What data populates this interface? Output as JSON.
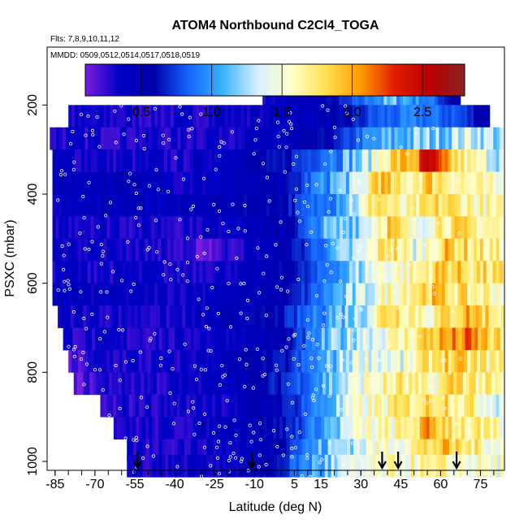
{
  "chart_data": {
    "type": "heatmap",
    "title": "ATOM4 Northbound C2Cl4_TOGA",
    "flights_label": "Flts: 7,8,9,10,11,12",
    "dates_label": "MMDD: 0509,0512,0514,0517,0518,0519",
    "xlabel": "Latitude (deg N)",
    "ylabel": "PSXC (mbar)",
    "xlim": [
      -88,
      84
    ],
    "ylim": [
      1020,
      70
    ],
    "x_ticks": [
      -85,
      -70,
      -55,
      -40,
      -25,
      -10,
      5,
      15,
      30,
      45,
      60,
      75
    ],
    "x_tick_labels": [
      "-85",
      "-70",
      "-55",
      "-40",
      "-25",
      "-10",
      "5",
      "15",
      "30",
      "45",
      "60",
      "75"
    ],
    "y_ticks": [
      200,
      400,
      600,
      800,
      1000
    ],
    "y_tick_labels": [
      "200",
      "400",
      "600",
      "800",
      "1000"
    ],
    "colorbar": {
      "range": [
        0.1,
        2.8
      ],
      "ticks": [
        0.5,
        1.0,
        1.5,
        2.0,
        2.5
      ],
      "tick_labels": [
        "0.5",
        "1.0",
        "1.5",
        "2.0",
        "2.5"
      ],
      "colors": [
        "#7a1de0",
        "#0000c8",
        "#0000aa",
        "#1565ff",
        "#3cb4ff",
        "#d8f0ff",
        "#ffffc8",
        "#ffe050",
        "#ff9a00",
        "#e21a00",
        "#b80000",
        "#8b2323"
      ]
    },
    "arrow_latitudes": [
      -54,
      -11,
      38,
      44,
      66
    ],
    "bands": [
      {
        "p": 175,
        "x0": -7,
        "x1": 67,
        "values": [
          [
            -7,
            0.35
          ],
          [
            10,
            0.4
          ],
          [
            25,
            0.7
          ],
          [
            35,
            1.0
          ],
          [
            45,
            1.1
          ],
          [
            55,
            0.9
          ],
          [
            67,
            0.5
          ]
        ]
      },
      {
        "p": 225,
        "x0": -80,
        "x1": 78,
        "values": [
          [
            -80,
            0.3
          ],
          [
            -40,
            0.3
          ],
          [
            -20,
            0.35
          ],
          [
            0,
            0.4
          ],
          [
            20,
            0.5
          ],
          [
            35,
            0.8
          ],
          [
            50,
            0.9
          ],
          [
            65,
            0.8
          ],
          [
            78,
            0.5
          ]
        ]
      },
      {
        "p": 275,
        "x0": -87,
        "x1": 83,
        "values": [
          [
            -87,
            0.3
          ],
          [
            -40,
            0.3
          ],
          [
            0,
            0.4
          ],
          [
            20,
            0.6
          ],
          [
            30,
            0.9
          ],
          [
            45,
            1.1
          ],
          [
            60,
            1.2
          ],
          [
            70,
            1.4
          ],
          [
            83,
            1.2
          ]
        ]
      },
      {
        "p": 325,
        "x0": -86,
        "x1": 83,
        "values": [
          [
            -86,
            0.35
          ],
          [
            -40,
            0.3
          ],
          [
            0,
            0.6
          ],
          [
            15,
            0.9
          ],
          [
            30,
            1.2
          ],
          [
            40,
            1.8
          ],
          [
            50,
            2.0
          ],
          [
            55,
            2.5
          ],
          [
            60,
            2.0
          ],
          [
            70,
            1.6
          ],
          [
            83,
            1.3
          ]
        ]
      },
      {
        "p": 375,
        "x0": -86,
        "x1": 83,
        "values": [
          [
            -86,
            0.4
          ],
          [
            -55,
            0.5
          ],
          [
            -40,
            0.35
          ],
          [
            0,
            0.5
          ],
          [
            15,
            1.0
          ],
          [
            30,
            1.3
          ],
          [
            35,
            2.0
          ],
          [
            45,
            1.6
          ],
          [
            55,
            1.9
          ],
          [
            70,
            1.6
          ],
          [
            83,
            1.4
          ]
        ]
      },
      {
        "p": 425,
        "x0": -86,
        "x1": 83,
        "values": [
          [
            -86,
            0.4
          ],
          [
            -60,
            0.45
          ],
          [
            -40,
            0.4
          ],
          [
            0,
            0.6
          ],
          [
            15,
            0.9
          ],
          [
            30,
            1.4
          ],
          [
            35,
            1.9
          ],
          [
            45,
            1.5
          ],
          [
            60,
            1.8
          ],
          [
            83,
            1.5
          ]
        ]
      },
      {
        "p": 475,
        "x0": -86,
        "x1": 83,
        "values": [
          [
            -86,
            0.35
          ],
          [
            -40,
            0.3
          ],
          [
            0,
            0.5
          ],
          [
            15,
            1.0
          ],
          [
            30,
            1.3
          ],
          [
            40,
            1.9
          ],
          [
            50,
            1.4
          ],
          [
            60,
            1.8
          ],
          [
            83,
            1.6
          ]
        ]
      },
      {
        "p": 525,
        "x0": -86,
        "x1": 83,
        "values": [
          [
            -86,
            0.4
          ],
          [
            -45,
            0.3
          ],
          [
            -30,
            0.15
          ],
          [
            0,
            0.5
          ],
          [
            15,
            0.9
          ],
          [
            30,
            1.3
          ],
          [
            40,
            1.9
          ],
          [
            50,
            1.4
          ],
          [
            62,
            1.9
          ],
          [
            83,
            1.6
          ]
        ]
      },
      {
        "p": 575,
        "x0": -86,
        "x1": 83,
        "values": [
          [
            -86,
            0.35
          ],
          [
            -40,
            0.3
          ],
          [
            -10,
            0.4
          ],
          [
            10,
            0.7
          ],
          [
            25,
            1.1
          ],
          [
            35,
            1.5
          ],
          [
            50,
            1.6
          ],
          [
            60,
            1.9
          ],
          [
            83,
            1.7
          ]
        ]
      },
      {
        "p": 625,
        "x0": -86,
        "x1": 83,
        "values": [
          [
            -86,
            0.4
          ],
          [
            -40,
            0.35
          ],
          [
            0,
            0.5
          ],
          [
            15,
            0.9
          ],
          [
            30,
            1.3
          ],
          [
            40,
            1.6
          ],
          [
            55,
            1.9
          ],
          [
            70,
            1.7
          ],
          [
            83,
            1.6
          ]
        ]
      },
      {
        "p": 675,
        "x0": -84,
        "x1": 83,
        "values": [
          [
            -84,
            0.35
          ],
          [
            -40,
            0.3
          ],
          [
            0,
            0.6
          ],
          [
            15,
            1.0
          ],
          [
            30,
            1.3
          ],
          [
            40,
            1.9
          ],
          [
            55,
            1.6
          ],
          [
            70,
            2.0
          ],
          [
            83,
            1.7
          ]
        ]
      },
      {
        "p": 725,
        "x0": -82,
        "x1": 83,
        "values": [
          [
            -82,
            0.3
          ],
          [
            -40,
            0.3
          ],
          [
            0,
            0.5
          ],
          [
            15,
            1.0
          ],
          [
            30,
            1.4
          ],
          [
            45,
            1.6
          ],
          [
            55,
            1.9
          ],
          [
            70,
            2.1
          ],
          [
            83,
            1.7
          ]
        ]
      },
      {
        "p": 775,
        "x0": -80,
        "x1": 83,
        "values": [
          [
            -80,
            0.15
          ],
          [
            -70,
            0.3
          ],
          [
            -40,
            0.3
          ],
          [
            0,
            0.6
          ],
          [
            15,
            1.0
          ],
          [
            30,
            1.5
          ],
          [
            45,
            1.4
          ],
          [
            60,
            1.9
          ],
          [
            83,
            1.6
          ]
        ]
      },
      {
        "p": 825,
        "x0": -78,
        "x1": 83,
        "values": [
          [
            -78,
            0.15
          ],
          [
            -65,
            0.3
          ],
          [
            -40,
            0.3
          ],
          [
            -10,
            0.5
          ],
          [
            10,
            0.9
          ],
          [
            30,
            1.5
          ],
          [
            45,
            1.7
          ],
          [
            55,
            1.5
          ],
          [
            65,
            1.9
          ],
          [
            83,
            1.5
          ]
        ]
      },
      {
        "p": 875,
        "x0": -68,
        "x1": 83,
        "values": [
          [
            -68,
            0.2
          ],
          [
            -55,
            0.3
          ],
          [
            -20,
            0.35
          ],
          [
            0,
            0.6
          ],
          [
            15,
            1.0
          ],
          [
            30,
            1.5
          ],
          [
            45,
            1.7
          ],
          [
            60,
            1.9
          ],
          [
            83,
            1.4
          ]
        ]
      },
      {
        "p": 925,
        "x0": -63,
        "x1": 83,
        "values": [
          [
            -63,
            0.3
          ],
          [
            -40,
            0.3
          ],
          [
            0,
            0.6
          ],
          [
            15,
            1.0
          ],
          [
            30,
            1.5
          ],
          [
            45,
            1.6
          ],
          [
            55,
            2.0
          ],
          [
            70,
            1.7
          ],
          [
            83,
            1.5
          ]
        ]
      },
      {
        "p": 975,
        "x0": -58,
        "x1": 83,
        "values": [
          [
            -58,
            0.3
          ],
          [
            -40,
            0.3
          ],
          [
            -10,
            0.4
          ],
          [
            5,
            0.8
          ],
          [
            20,
            1.2
          ],
          [
            35,
            1.5
          ],
          [
            45,
            1.6
          ],
          [
            60,
            1.9
          ],
          [
            83,
            1.5
          ]
        ]
      },
      {
        "p": 1010,
        "x0": -58,
        "x1": 83,
        "values": [
          [
            -58,
            0.3
          ],
          [
            -10,
            0.4
          ],
          [
            10,
            1.0
          ],
          [
            30,
            1.4
          ],
          [
            50,
            1.6
          ],
          [
            83,
            1.5
          ]
        ]
      }
    ]
  }
}
